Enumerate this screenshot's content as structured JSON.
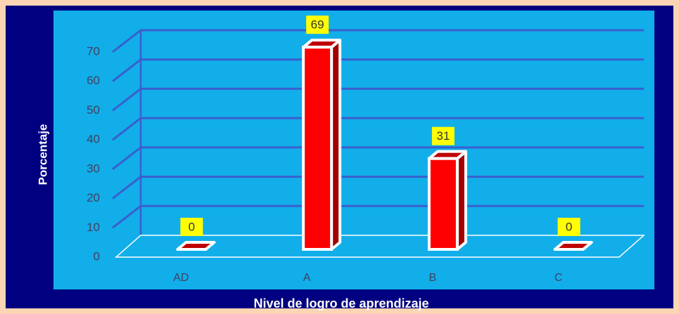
{
  "chart_data": {
    "type": "bar",
    "categories": [
      "AD",
      "A",
      "B",
      "C"
    ],
    "values": [
      0,
      69,
      31,
      0
    ],
    "color": "#ff0000",
    "ylim": [
      0,
      70
    ],
    "yticks": [
      0,
      10,
      20,
      30,
      40,
      50,
      60,
      70
    ],
    "grid": true,
    "ylabel": "Porcentaje",
    "xlabel": "Nivel de logro de aprendizaje"
  }
}
